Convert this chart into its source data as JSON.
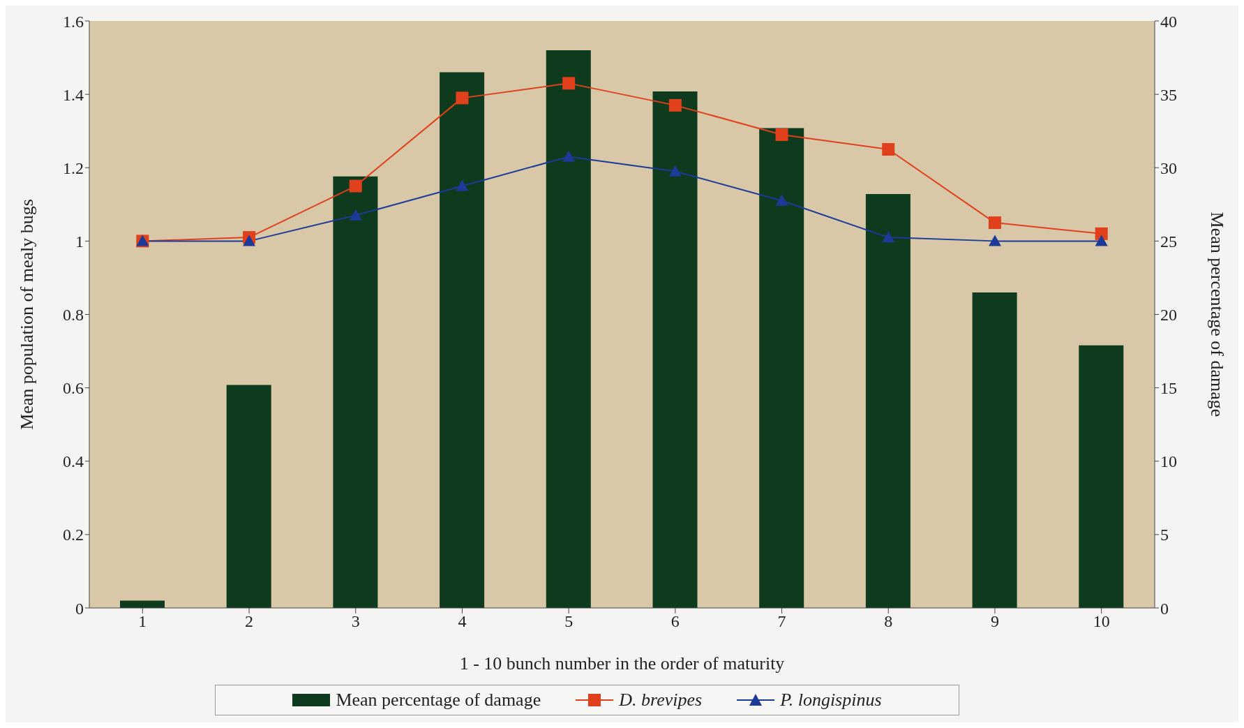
{
  "chart_data": {
    "type": "bar",
    "xlabel": "1 - 10 bunch number in the order of maturity",
    "ylabel": "Mean population of mealy bugs",
    "y2label": "Mean percentage of damage",
    "categories": [
      "1",
      "2",
      "3",
      "4",
      "5",
      "6",
      "7",
      "8",
      "9",
      "10"
    ],
    "series": [
      {
        "name": "Mean percentage of damage",
        "axis": "y2",
        "color": "#0e3a1e",
        "values": [
          0.5,
          15.2,
          29.4,
          36.5,
          38.0,
          35.2,
          32.7,
          28.2,
          21.5,
          17.9
        ]
      },
      {
        "name": "D. brevipes",
        "type": "line",
        "marker": "square",
        "color": "#e0401c",
        "values": [
          1.0,
          1.01,
          1.15,
          1.39,
          1.43,
          1.37,
          1.29,
          1.25,
          1.05,
          1.02
        ]
      },
      {
        "name": "P. longispinus",
        "type": "line",
        "marker": "triangle",
        "color": "#1c3a98",
        "values": [
          1.0,
          1.0,
          1.07,
          1.15,
          1.23,
          1.19,
          1.11,
          1.01,
          1.0,
          1.0
        ]
      }
    ],
    "ylim": [
      0,
      1.6
    ],
    "yticks": [
      0,
      0.2,
      0.4,
      0.6,
      0.8,
      1,
      1.2,
      1.4,
      1.6
    ],
    "y2lim": [
      0,
      40
    ],
    "y2ticks": [
      0,
      5,
      10,
      15,
      20,
      25,
      30,
      35,
      40
    ],
    "grid": false,
    "legend": "bottom"
  }
}
